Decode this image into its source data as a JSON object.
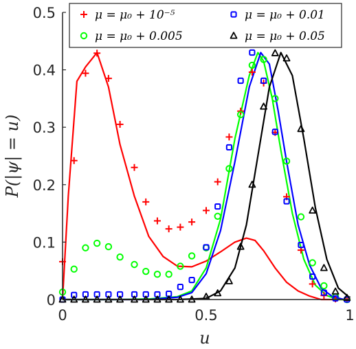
{
  "chart_data": {
    "type": "line",
    "xlabel": "u",
    "ylabel": "P(|ψ| = u)",
    "xlim": [
      0,
      1
    ],
    "ylim": [
      0,
      0.5
    ],
    "xticks": [
      "0",
      "0.5",
      "1"
    ],
    "yticks": [
      "0",
      "0.1",
      "0.2",
      "0.3",
      "0.4",
      "0.5"
    ],
    "grid": false,
    "legend_position": "top-right",
    "series": [
      {
        "name": "μ = μ₀ + 10⁻⁵",
        "color": "#ff0000",
        "marker": "plus",
        "points": [
          [
            0.0,
            0.066
          ],
          [
            0.04,
            0.242
          ],
          [
            0.08,
            0.394
          ],
          [
            0.12,
            0.429
          ],
          [
            0.16,
            0.385
          ],
          [
            0.2,
            0.305
          ],
          [
            0.25,
            0.23
          ],
          [
            0.29,
            0.17
          ],
          [
            0.33,
            0.137
          ],
          [
            0.37,
            0.123
          ],
          [
            0.41,
            0.126
          ],
          [
            0.45,
            0.135
          ],
          [
            0.5,
            0.155
          ],
          [
            0.54,
            0.205
          ],
          [
            0.58,
            0.283
          ],
          [
            0.62,
            0.328
          ],
          [
            0.66,
            0.396
          ],
          [
            0.7,
            0.377
          ],
          [
            0.74,
            0.291
          ],
          [
            0.78,
            0.179
          ],
          [
            0.83,
            0.086
          ],
          [
            0.87,
            0.027
          ],
          [
            0.91,
            0.007
          ],
          [
            0.95,
            0.001
          ],
          [
            0.99,
            0.0
          ]
        ],
        "curve": [
          [
            0.0,
            0.0
          ],
          [
            0.02,
            0.18
          ],
          [
            0.05,
            0.38
          ],
          [
            0.08,
            0.405
          ],
          [
            0.12,
            0.43
          ],
          [
            0.16,
            0.37
          ],
          [
            0.2,
            0.27
          ],
          [
            0.25,
            0.18
          ],
          [
            0.3,
            0.11
          ],
          [
            0.35,
            0.075
          ],
          [
            0.4,
            0.058
          ],
          [
            0.45,
            0.057
          ],
          [
            0.5,
            0.067
          ],
          [
            0.55,
            0.083
          ],
          [
            0.6,
            0.1
          ],
          [
            0.64,
            0.107
          ],
          [
            0.67,
            0.103
          ],
          [
            0.7,
            0.085
          ],
          [
            0.74,
            0.055
          ],
          [
            0.78,
            0.03
          ],
          [
            0.82,
            0.015
          ],
          [
            0.86,
            0.006
          ],
          [
            0.9,
            0.0
          ],
          [
            0.94,
            0.0
          ],
          [
            1.0,
            0.0
          ]
        ]
      },
      {
        "name": "μ = μ₀ + 0.005",
        "color": "#00ff00",
        "marker": "circle",
        "points": [
          [
            0.0,
            0.013
          ],
          [
            0.04,
            0.053
          ],
          [
            0.08,
            0.09
          ],
          [
            0.12,
            0.098
          ],
          [
            0.16,
            0.092
          ],
          [
            0.2,
            0.074
          ],
          [
            0.25,
            0.061
          ],
          [
            0.29,
            0.049
          ],
          [
            0.33,
            0.044
          ],
          [
            0.37,
            0.044
          ],
          [
            0.41,
            0.058
          ],
          [
            0.45,
            0.076
          ],
          [
            0.5,
            0.09
          ],
          [
            0.54,
            0.145
          ],
          [
            0.58,
            0.228
          ],
          [
            0.62,
            0.322
          ],
          [
            0.66,
            0.408
          ],
          [
            0.7,
            0.418
          ],
          [
            0.74,
            0.35
          ],
          [
            0.78,
            0.241
          ],
          [
            0.83,
            0.144
          ],
          [
            0.87,
            0.064
          ],
          [
            0.91,
            0.024
          ],
          [
            0.95,
            0.005
          ],
          [
            0.99,
            0.0
          ]
        ],
        "curve": [
          [
            0.0,
            0.0
          ],
          [
            0.2,
            0.0
          ],
          [
            0.3,
            0.001
          ],
          [
            0.4,
            0.005
          ],
          [
            0.45,
            0.015
          ],
          [
            0.5,
            0.055
          ],
          [
            0.55,
            0.14
          ],
          [
            0.6,
            0.28
          ],
          [
            0.65,
            0.39
          ],
          [
            0.68,
            0.43
          ],
          [
            0.7,
            0.415
          ],
          [
            0.73,
            0.35
          ],
          [
            0.76,
            0.26
          ],
          [
            0.8,
            0.15
          ],
          [
            0.84,
            0.07
          ],
          [
            0.88,
            0.025
          ],
          [
            0.92,
            0.007
          ],
          [
            0.96,
            0.0
          ],
          [
            1.0,
            0.0
          ]
        ]
      },
      {
        "name": "μ = μ₀ + 0.01",
        "color": "#0000ff",
        "marker": "square",
        "points": [
          [
            0.0,
            0.0
          ],
          [
            0.04,
            0.008
          ],
          [
            0.08,
            0.009
          ],
          [
            0.12,
            0.009
          ],
          [
            0.16,
            0.009
          ],
          [
            0.2,
            0.009
          ],
          [
            0.25,
            0.009
          ],
          [
            0.29,
            0.009
          ],
          [
            0.33,
            0.009
          ],
          [
            0.37,
            0.01
          ],
          [
            0.41,
            0.022
          ],
          [
            0.45,
            0.034
          ],
          [
            0.5,
            0.091
          ],
          [
            0.54,
            0.162
          ],
          [
            0.58,
            0.265
          ],
          [
            0.62,
            0.381
          ],
          [
            0.66,
            0.43
          ],
          [
            0.7,
            0.381
          ],
          [
            0.74,
            0.292
          ],
          [
            0.78,
            0.171
          ],
          [
            0.83,
            0.095
          ],
          [
            0.87,
            0.04
          ],
          [
            0.91,
            0.012
          ],
          [
            0.95,
            0.002
          ],
          [
            0.99,
            0.0
          ]
        ],
        "curve": [
          [
            0.0,
            0.0
          ],
          [
            0.2,
            0.0
          ],
          [
            0.3,
            0.0
          ],
          [
            0.4,
            0.004
          ],
          [
            0.45,
            0.012
          ],
          [
            0.5,
            0.045
          ],
          [
            0.55,
            0.12
          ],
          [
            0.6,
            0.24
          ],
          [
            0.65,
            0.37
          ],
          [
            0.69,
            0.43
          ],
          [
            0.72,
            0.41
          ],
          [
            0.75,
            0.33
          ],
          [
            0.78,
            0.24
          ],
          [
            0.82,
            0.13
          ],
          [
            0.86,
            0.06
          ],
          [
            0.9,
            0.02
          ],
          [
            0.94,
            0.005
          ],
          [
            0.98,
            0.0
          ],
          [
            1.0,
            0.0
          ]
        ]
      },
      {
        "name": "μ = μ₀ + 0.05",
        "color": "#000000",
        "marker": "triangle",
        "points": [
          [
            0.0,
            0.0
          ],
          [
            0.04,
            0.0
          ],
          [
            0.08,
            0.0
          ],
          [
            0.12,
            0.0
          ],
          [
            0.16,
            0.0
          ],
          [
            0.2,
            0.0
          ],
          [
            0.25,
            0.0
          ],
          [
            0.29,
            0.0
          ],
          [
            0.33,
            0.0
          ],
          [
            0.37,
            0.0
          ],
          [
            0.41,
            0.0
          ],
          [
            0.45,
            0.0
          ],
          [
            0.5,
            0.005
          ],
          [
            0.54,
            0.011
          ],
          [
            0.58,
            0.032
          ],
          [
            0.62,
            0.092
          ],
          [
            0.66,
            0.2
          ],
          [
            0.7,
            0.336
          ],
          [
            0.74,
            0.429
          ],
          [
            0.78,
            0.42
          ],
          [
            0.83,
            0.297
          ],
          [
            0.87,
            0.155
          ],
          [
            0.91,
            0.055
          ],
          [
            0.95,
            0.014
          ],
          [
            0.99,
            0.003
          ]
        ],
        "curve": [
          [
            0.0,
            0.0
          ],
          [
            0.4,
            0.0
          ],
          [
            0.5,
            0.002
          ],
          [
            0.55,
            0.015
          ],
          [
            0.6,
            0.055
          ],
          [
            0.64,
            0.13
          ],
          [
            0.68,
            0.25
          ],
          [
            0.72,
            0.37
          ],
          [
            0.76,
            0.43
          ],
          [
            0.8,
            0.39
          ],
          [
            0.84,
            0.28
          ],
          [
            0.88,
            0.16
          ],
          [
            0.92,
            0.07
          ],
          [
            0.96,
            0.02
          ],
          [
            1.0,
            0.003
          ]
        ]
      }
    ]
  }
}
